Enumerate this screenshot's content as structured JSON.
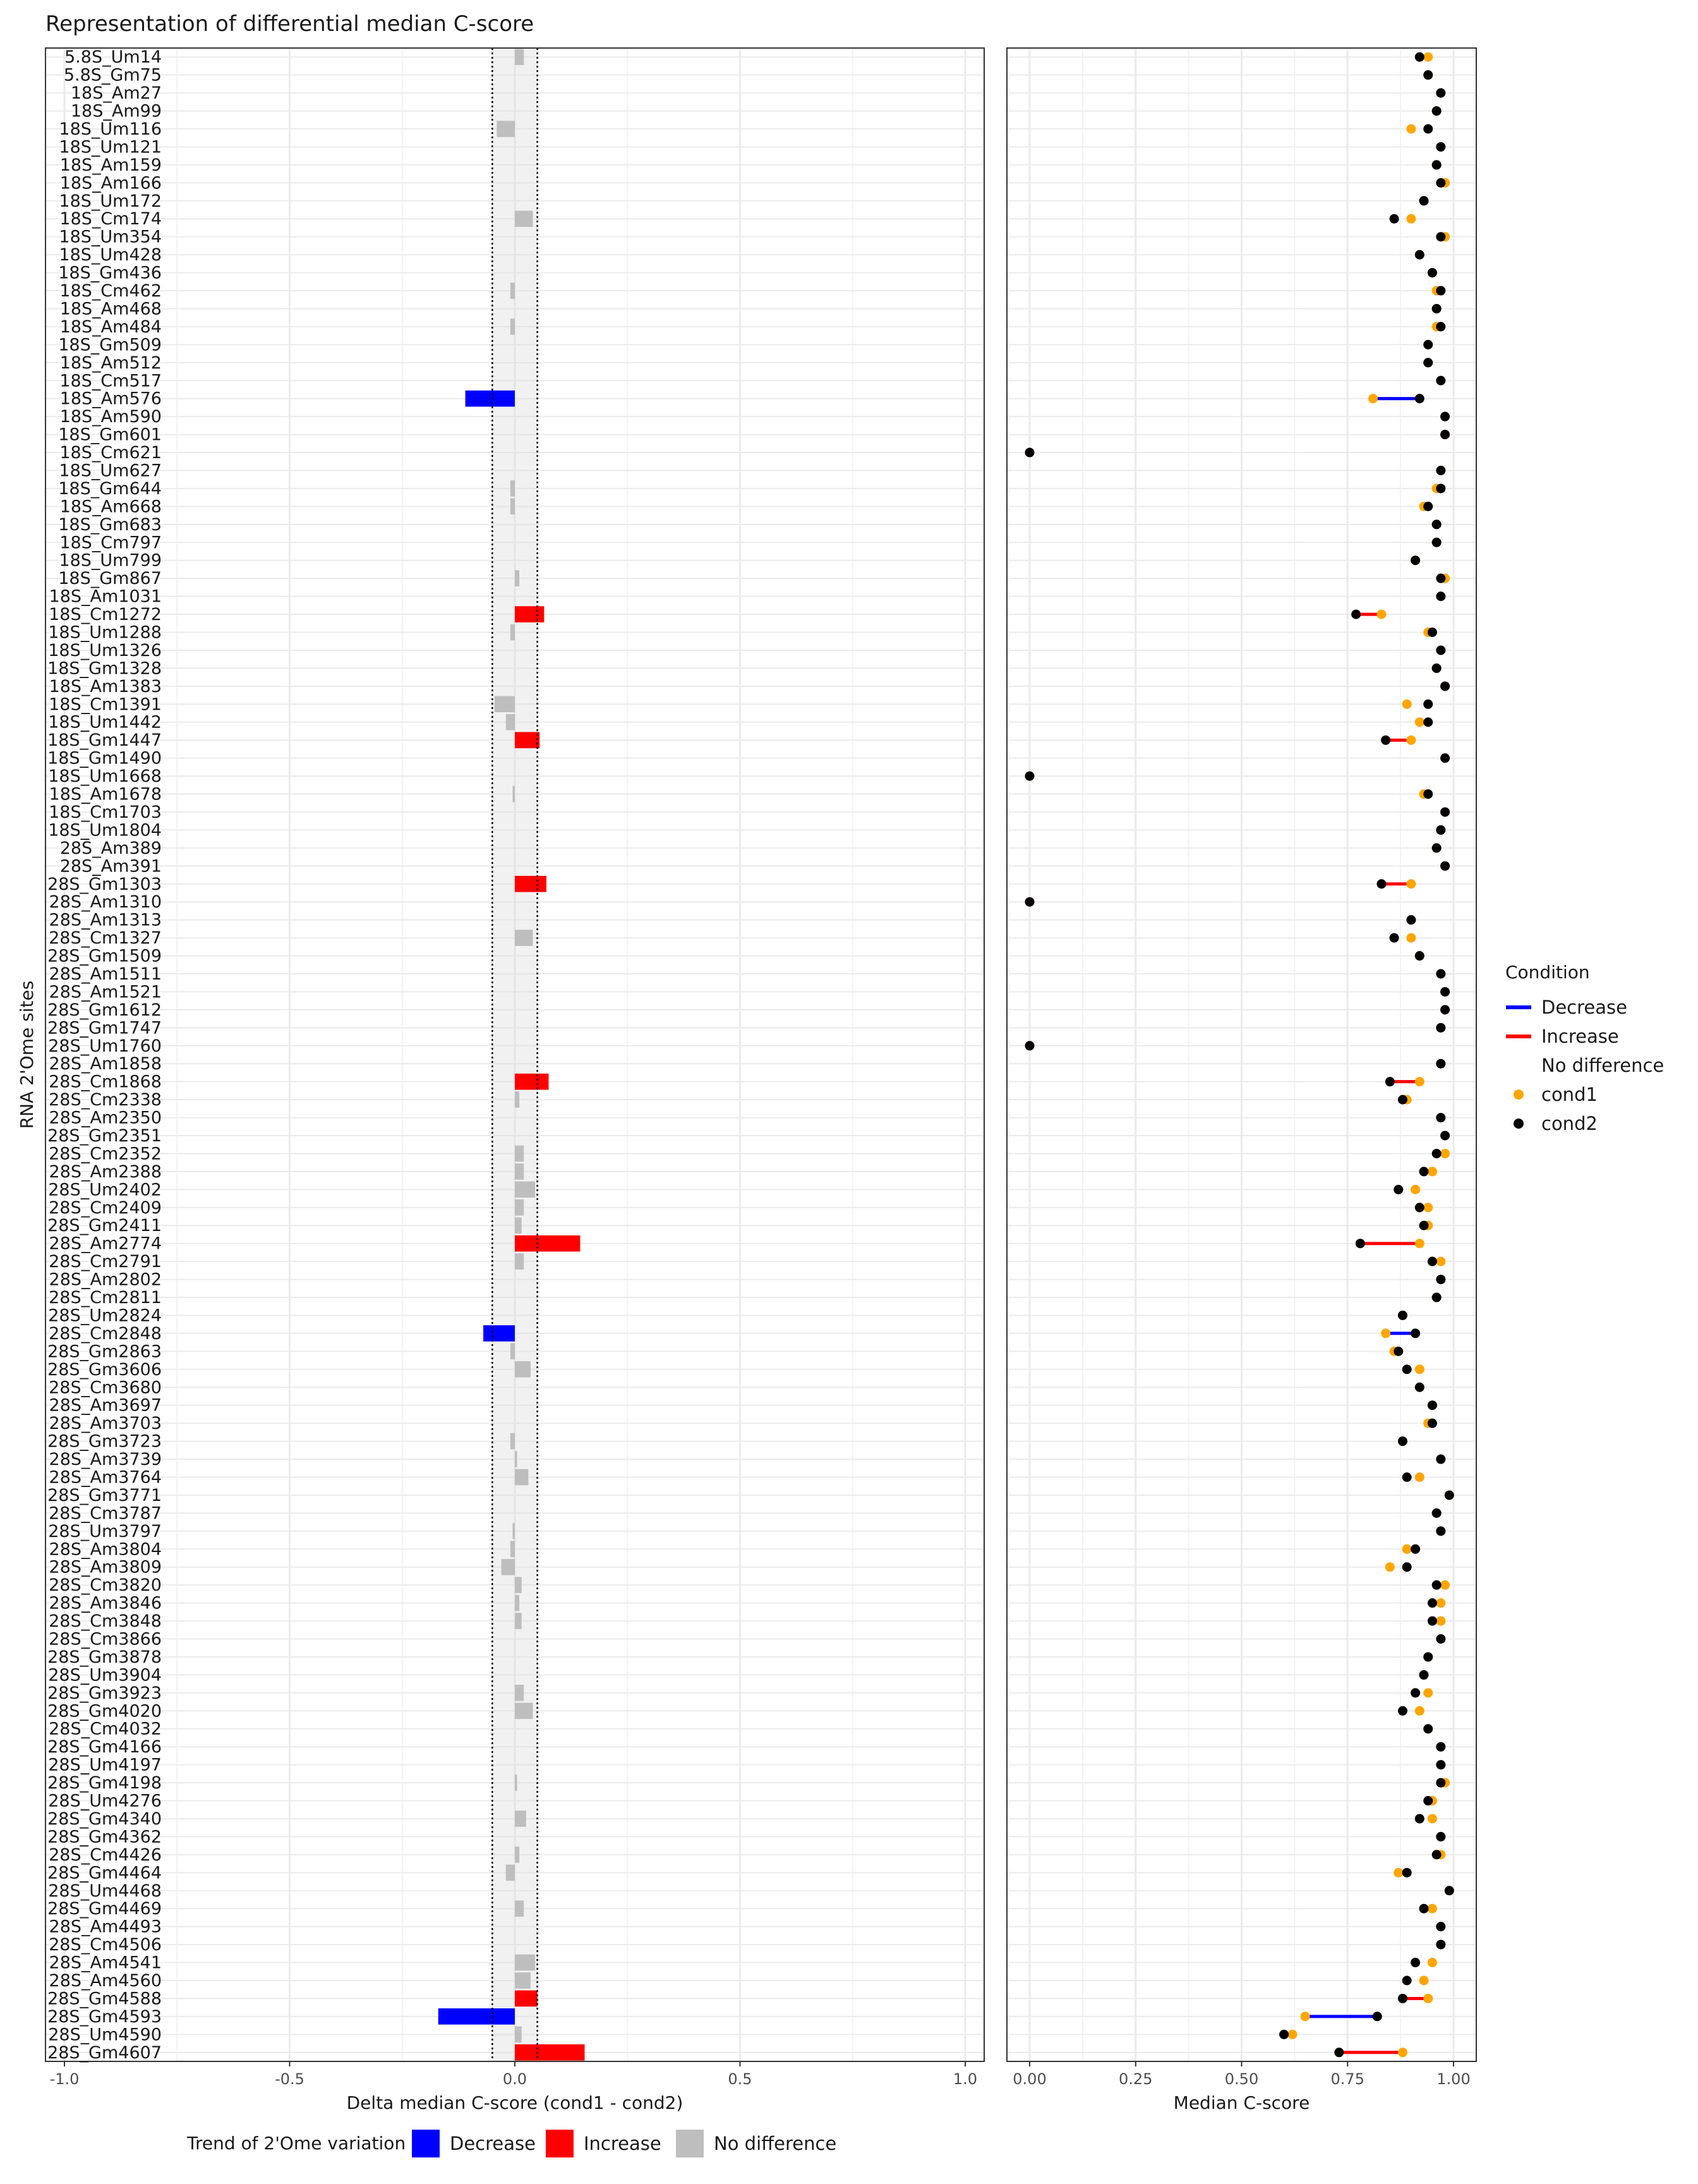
{
  "chart_data": [
    {
      "type": "bar",
      "title": "Representation of differential median C-score",
      "xlabel": "Delta median C-score (cond1 - cond2)",
      "ylabel": "RNA 2'Ome sites",
      "xlim": [
        -1.0,
        1.0
      ],
      "x_ticks": [
        "-1.0",
        "-0.5",
        "0.0",
        "0.5",
        "1.0"
      ],
      "threshold_lines": [
        -0.05,
        0.05
      ],
      "grid": true,
      "legend": {
        "title": "Trend of 2'Ome variation",
        "position": "bottom",
        "entries": [
          {
            "label": "Decrease",
            "color": "#0000ff"
          },
          {
            "label": "Increase",
            "color": "#ff0000"
          },
          {
            "label": "No difference",
            "color": "#bebebe"
          }
        ]
      },
      "categories": [
        "5.8S_Um14",
        "5.8S_Gm75",
        "18S_Am27",
        "18S_Am99",
        "18S_Um116",
        "18S_Um121",
        "18S_Am159",
        "18S_Am166",
        "18S_Um172",
        "18S_Cm174",
        "18S_Um354",
        "18S_Um428",
        "18S_Gm436",
        "18S_Cm462",
        "18S_Am468",
        "18S_Am484",
        "18S_Gm509",
        "18S_Am512",
        "18S_Cm517",
        "18S_Am576",
        "18S_Am590",
        "18S_Gm601",
        "18S_Cm621",
        "18S_Um627",
        "18S_Gm644",
        "18S_Am668",
        "18S_Gm683",
        "18S_Cm797",
        "18S_Um799",
        "18S_Gm867",
        "18S_Am1031",
        "18S_Cm1272",
        "18S_Um1288",
        "18S_Um1326",
        "18S_Gm1328",
        "18S_Am1383",
        "18S_Cm1391",
        "18S_Um1442",
        "18S_Gm1447",
        "18S_Gm1490",
        "18S_Um1668",
        "18S_Am1678",
        "18S_Cm1703",
        "18S_Um1804",
        "28S_Am389",
        "28S_Am391",
        "28S_Gm1303",
        "28S_Am1310",
        "28S_Am1313",
        "28S_Cm1327",
        "28S_Gm1509",
        "28S_Am1511",
        "28S_Am1521",
        "28S_Gm1612",
        "28S_Gm1747",
        "28S_Um1760",
        "28S_Am1858",
        "28S_Cm1868",
        "28S_Cm2338",
        "28S_Am2350",
        "28S_Gm2351",
        "28S_Cm2352",
        "28S_Am2388",
        "28S_Um2402",
        "28S_Cm2409",
        "28S_Gm2411",
        "28S_Am2774",
        "28S_Cm2791",
        "28S_Am2802",
        "28S_Cm2811",
        "28S_Um2824",
        "28S_Cm2848",
        "28S_Gm2863",
        "28S_Gm3606",
        "28S_Cm3680",
        "28S_Am3697",
        "28S_Am3703",
        "28S_Gm3723",
        "28S_Am3739",
        "28S_Am3764",
        "28S_Gm3771",
        "28S_Cm3787",
        "28S_Um3797",
        "28S_Am3804",
        "28S_Am3809",
        "28S_Cm3820",
        "28S_Am3846",
        "28S_Cm3848",
        "28S_Cm3866",
        "28S_Gm3878",
        "28S_Um3904",
        "28S_Gm3923",
        "28S_Gm4020",
        "28S_Cm4032",
        "28S_Gm4166",
        "28S_Um4197",
        "28S_Gm4198",
        "28S_Um4276",
        "28S_Gm4340",
        "28S_Gm4362",
        "28S_Cm4426",
        "28S_Gm4464",
        "28S_Um4468",
        "28S_Gm4469",
        "28S_Am4493",
        "28S_Cm4506",
        "28S_Am4541",
        "28S_Am4560",
        "28S_Gm4588",
        "28S_Gm4593",
        "28S_Um4590",
        "28S_Gm4607"
      ],
      "values": [
        0.02,
        0,
        0,
        0,
        -0.04,
        0,
        0,
        0,
        0,
        0.04,
        0,
        0,
        0,
        -0.01,
        0,
        -0.01,
        0,
        0,
        0,
        -0.11,
        0,
        0,
        0,
        0,
        -0.01,
        -0.01,
        0,
        0,
        0,
        0.01,
        0,
        0.065,
        -0.01,
        0,
        0,
        0,
        -0.045,
        -0.02,
        0.055,
        0,
        0,
        -0.005,
        0,
        0,
        0,
        0,
        0.07,
        0,
        0,
        0.04,
        0,
        0,
        0,
        0,
        0,
        0,
        0,
        0.075,
        0.01,
        0,
        0,
        0.02,
        0.02,
        0.045,
        0.02,
        0.015,
        0.145,
        0.02,
        0,
        0,
        0,
        -0.07,
        -0.01,
        0.035,
        0,
        0,
        0,
        -0.01,
        0.005,
        0.03,
        0,
        0,
        -0.005,
        -0.01,
        -0.03,
        0.015,
        0.01,
        0.015,
        0,
        0,
        0,
        0.02,
        0.04,
        0,
        0,
        0,
        0.005,
        0,
        0.025,
        0,
        0.01,
        -0.02,
        0,
        0.02,
        0,
        0,
        0.045,
        0.035,
        0.05,
        -0.17,
        0.015,
        0.155
      ],
      "trend": [
        "No difference",
        "No difference",
        "No difference",
        "No difference",
        "No difference",
        "No difference",
        "No difference",
        "No difference",
        "No difference",
        "No difference",
        "No difference",
        "No difference",
        "No difference",
        "No difference",
        "No difference",
        "No difference",
        "No difference",
        "No difference",
        "No difference",
        "Decrease",
        "No difference",
        "No difference",
        "No difference",
        "No difference",
        "No difference",
        "No difference",
        "No difference",
        "No difference",
        "No difference",
        "No difference",
        "No difference",
        "Increase",
        "No difference",
        "No difference",
        "No difference",
        "No difference",
        "No difference",
        "No difference",
        "Increase",
        "No difference",
        "No difference",
        "No difference",
        "No difference",
        "No difference",
        "No difference",
        "No difference",
        "Increase",
        "No difference",
        "No difference",
        "No difference",
        "No difference",
        "No difference",
        "No difference",
        "No difference",
        "No difference",
        "No difference",
        "No difference",
        "Increase",
        "No difference",
        "No difference",
        "No difference",
        "No difference",
        "No difference",
        "No difference",
        "No difference",
        "No difference",
        "Increase",
        "No difference",
        "No difference",
        "No difference",
        "No difference",
        "Decrease",
        "No difference",
        "No difference",
        "No difference",
        "No difference",
        "No difference",
        "No difference",
        "No difference",
        "No difference",
        "No difference",
        "No difference",
        "No difference",
        "No difference",
        "No difference",
        "No difference",
        "No difference",
        "No difference",
        "No difference",
        "No difference",
        "No difference",
        "No difference",
        "No difference",
        "No difference",
        "No difference",
        "No difference",
        "No difference",
        "No difference",
        "No difference",
        "No difference",
        "No difference",
        "No difference",
        "No difference",
        "No difference",
        "No difference",
        "No difference",
        "No difference",
        "No difference",
        "Increase",
        "Decrease",
        "No difference",
        "Increase"
      ]
    },
    {
      "type": "scatter",
      "xlabel": "Median C-score",
      "xlim": [
        0.0,
        1.0
      ],
      "x_ticks": [
        "0.00",
        "0.25",
        "0.50",
        "0.75",
        "1.00"
      ],
      "grid": true,
      "legend": {
        "title": "Condition",
        "position": "right",
        "entries": [
          {
            "label": "Decrease",
            "kind": "line",
            "color": "#0000ff"
          },
          {
            "label": "Increase",
            "kind": "line",
            "color": "#ff0000"
          },
          {
            "label": "No difference",
            "kind": "none",
            "color": "#ffffff"
          },
          {
            "label": "cond1",
            "kind": "point",
            "color": "#ffa500"
          },
          {
            "label": "cond2",
            "kind": "point",
            "color": "#000000"
          }
        ]
      },
      "series": [
        {
          "name": "cond1",
          "color": "#ffa500",
          "values": [
            0.94,
            0.94,
            0.97,
            0.96,
            0.9,
            0.97,
            0.96,
            0.98,
            0.93,
            0.9,
            0.98,
            0.92,
            0.95,
            0.96,
            0.96,
            0.96,
            0.94,
            0.94,
            0.97,
            0.81,
            0.98,
            0.98,
            0,
            0.97,
            0.96,
            0.93,
            0.96,
            0.96,
            0.91,
            0.98,
            0.97,
            0.83,
            0.94,
            0.97,
            0.96,
            0.98,
            0.89,
            0.92,
            0.9,
            0.98,
            0,
            0.93,
            0.98,
            0.97,
            0.96,
            0.98,
            0.9,
            0,
            0.9,
            0.9,
            0.92,
            0.97,
            0.98,
            0.98,
            0.97,
            0,
            0.97,
            0.92,
            0.89,
            0.97,
            0.98,
            0.98,
            0.95,
            0.91,
            0.94,
            0.94,
            0.92,
            0.97,
            0.97,
            0.96,
            0.88,
            0.84,
            0.86,
            0.92,
            0.92,
            0.95,
            0.94,
            0.88,
            0.97,
            0.92,
            0.99,
            0.96,
            0.97,
            0.89,
            0.85,
            0.98,
            0.97,
            0.97,
            0.97,
            0.94,
            0.93,
            0.94,
            0.92,
            0.94,
            0.97,
            0.97,
            0.98,
            0.95,
            0.95,
            0.97,
            0.97,
            0.87,
            0.99,
            0.95,
            0.97,
            0.97,
            0.95,
            0.93,
            0.94,
            0.65,
            0.62,
            0.88
          ]
        },
        {
          "name": "cond2",
          "color": "#000000",
          "values": [
            0.92,
            0.94,
            0.97,
            0.96,
            0.94,
            0.97,
            0.96,
            0.97,
            0.93,
            0.86,
            0.97,
            0.92,
            0.95,
            0.97,
            0.96,
            0.97,
            0.94,
            0.94,
            0.97,
            0.92,
            0.98,
            0.98,
            0,
            0.97,
            0.97,
            0.94,
            0.96,
            0.96,
            0.91,
            0.97,
            0.97,
            0.77,
            0.95,
            0.97,
            0.96,
            0.98,
            0.94,
            0.94,
            0.84,
            0.98,
            0,
            0.94,
            0.98,
            0.97,
            0.96,
            0.98,
            0.83,
            0,
            0.9,
            0.86,
            0.92,
            0.97,
            0.98,
            0.98,
            0.97,
            0,
            0.97,
            0.85,
            0.88,
            0.97,
            0.98,
            0.96,
            0.93,
            0.87,
            0.92,
            0.93,
            0.78,
            0.95,
            0.97,
            0.96,
            0.88,
            0.91,
            0.87,
            0.89,
            0.92,
            0.95,
            0.95,
            0.88,
            0.97,
            0.89,
            0.99,
            0.96,
            0.97,
            0.91,
            0.89,
            0.96,
            0.95,
            0.95,
            0.97,
            0.94,
            0.93,
            0.91,
            0.88,
            0.94,
            0.97,
            0.97,
            0.97,
            0.94,
            0.92,
            0.97,
            0.96,
            0.89,
            0.99,
            0.93,
            0.97,
            0.97,
            0.91,
            0.89,
            0.88,
            0.82,
            0.6,
            0.73
          ]
        }
      ]
    }
  ]
}
